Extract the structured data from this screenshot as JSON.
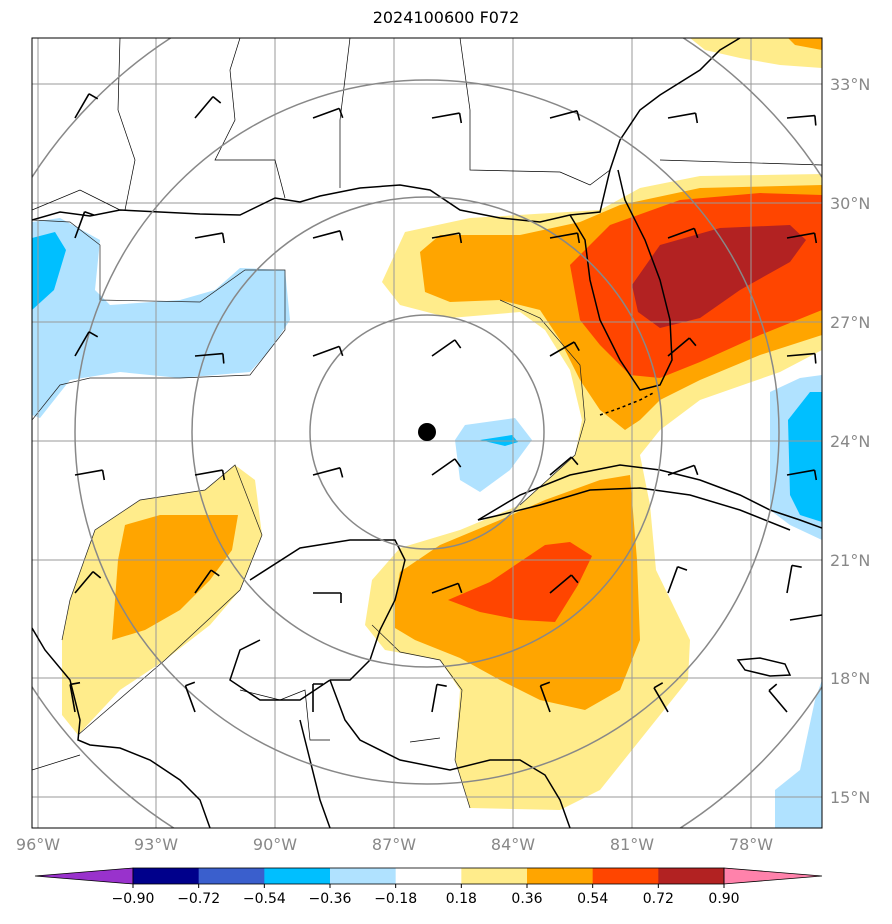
{
  "title": "2024100600 F072",
  "lon_labels": [
    "96°W",
    "93°W",
    "90°W",
    "87°W",
    "84°W",
    "81°W",
    "78°W"
  ],
  "lat_labels": [
    "33°N",
    "30°N",
    "27°N",
    "24°N",
    "21°N",
    "18°N",
    "15°N"
  ],
  "colorbar": {
    "colors": [
      "#9932CC",
      "#00008B",
      "#3A5FCD",
      "#00BFFF",
      "#B0E2FF",
      "#FFFFFF",
      "#FFEC8B",
      "#FFA500",
      "#FF4500",
      "#B22222",
      "#FF82AB"
    ],
    "tick_labels": [
      "−0.90",
      "−0.72",
      "−0.54",
      "−0.36",
      "−0.18",
      "0.18",
      "0.36",
      "0.54",
      "0.72",
      "0.90"
    ]
  },
  "storm_center": {
    "lon": "86.1°W",
    "lat": "24.2°N"
  }
}
